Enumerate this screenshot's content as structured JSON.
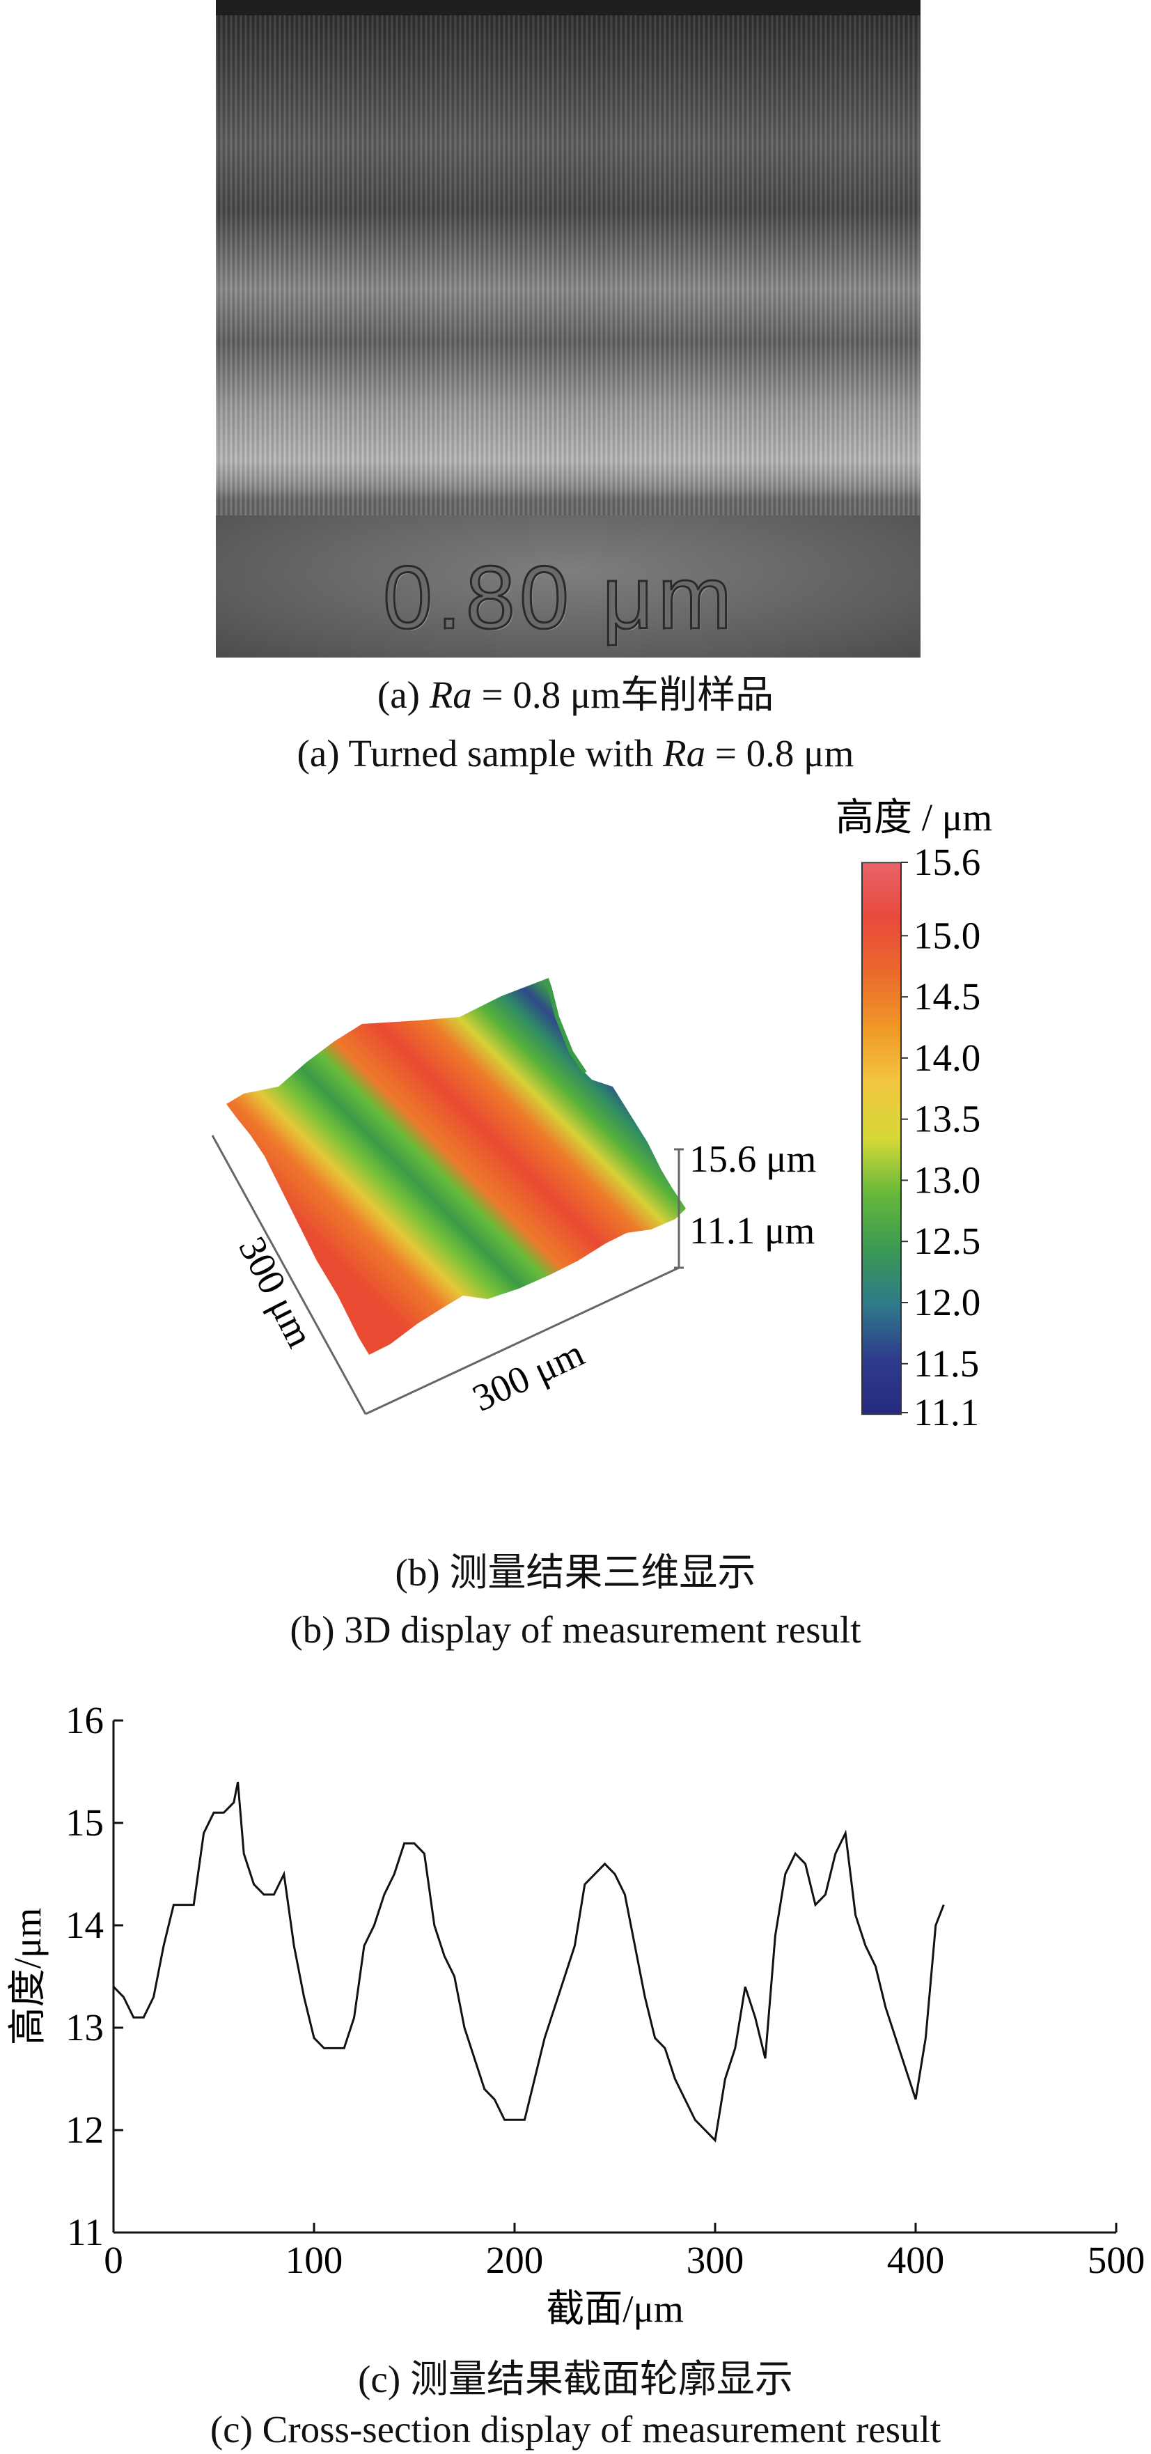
{
  "panel_a": {
    "engraved_label": "0.80 μm",
    "caption_cn": [
      "(a) ",
      "Ra",
      " = 0.8 μm车削样品"
    ],
    "caption_en": [
      "(a) Turned sample with ",
      "Ra",
      " = 0.8 μm"
    ]
  },
  "panel_b": {
    "colorbar_title": "高度 / μm",
    "colorbar_ticks": [
      "15.6",
      "15.0",
      "14.5",
      "14.0",
      "13.5",
      "13.0",
      "12.5",
      "12.0",
      "11.5",
      "11.1"
    ],
    "colorbar_colors": [
      "#e8646a",
      "#e84a3c",
      "#ea6a2c",
      "#f09828",
      "#f2c640",
      "#d6d838",
      "#66b83a",
      "#3a9a52",
      "#2e7a8a",
      "#2e3c8e",
      "#262a80"
    ],
    "z_max_label": "15.6 μm",
    "z_min_label": "11.1 μm",
    "x_extent_label": "300 μm",
    "y_extent_label": "300 μm",
    "caption_cn": "(b) 测量结果三维显示",
    "caption_en": "(b) 3D display of measurement result"
  },
  "chart_data": {
    "type": "line",
    "xlabel": "截面/μm",
    "ylabel": "高度/μm",
    "xlim": [
      0,
      500
    ],
    "ylim": [
      11,
      16
    ],
    "xticks": [
      "0",
      "100",
      "200",
      "300",
      "400",
      "500"
    ],
    "yticks": [
      "11",
      "12",
      "13",
      "14",
      "15",
      "16"
    ],
    "series": [
      {
        "x": [
          0,
          5,
          10,
          15,
          20,
          25,
          30,
          35,
          40,
          45,
          50,
          55,
          60,
          62,
          65,
          70,
          75,
          80,
          85,
          90,
          95,
          100,
          105,
          110,
          115,
          120,
          125,
          130,
          135,
          140,
          145,
          150,
          155,
          160,
          165,
          170,
          175,
          180,
          185,
          190,
          195,
          200,
          205,
          210,
          215,
          220,
          225,
          230,
          235,
          240,
          245,
          250,
          255,
          260,
          265,
          270,
          275,
          280,
          285,
          290,
          295,
          300,
          305,
          310,
          315,
          320,
          325,
          330,
          335,
          340,
          345,
          350,
          355,
          360,
          365,
          370,
          375,
          380,
          385,
          390,
          395,
          400,
          405,
          410,
          414
        ],
        "y": [
          13.4,
          13.3,
          13.1,
          13.1,
          13.3,
          13.8,
          14.2,
          14.2,
          14.2,
          14.9,
          15.1,
          15.1,
          15.2,
          15.4,
          14.7,
          14.4,
          14.3,
          14.3,
          14.5,
          13.8,
          13.3,
          12.9,
          12.8,
          12.8,
          12.8,
          13.1,
          13.8,
          14.0,
          14.3,
          14.5,
          14.8,
          14.8,
          14.7,
          14.0,
          13.7,
          13.5,
          13.0,
          12.7,
          12.4,
          12.3,
          12.1,
          12.1,
          12.1,
          12.5,
          12.9,
          13.2,
          13.5,
          13.8,
          14.4,
          14.5,
          14.6,
          14.5,
          14.3,
          13.8,
          13.3,
          12.9,
          12.8,
          12.5,
          12.3,
          12.1,
          12.0,
          11.9,
          12.5,
          12.8,
          13.4,
          13.1,
          12.7,
          13.9,
          14.5,
          14.7,
          14.6,
          14.2,
          14.3,
          14.7,
          14.9,
          14.1,
          13.8,
          13.6,
          13.2,
          12.9,
          12.6,
          12.3,
          12.9,
          14.0,
          14.2
        ]
      }
    ]
  },
  "panel_c": {
    "caption_cn": "(c) 测量结果截面轮廓显示",
    "caption_en": "(c) Cross-section display of measurement result"
  }
}
